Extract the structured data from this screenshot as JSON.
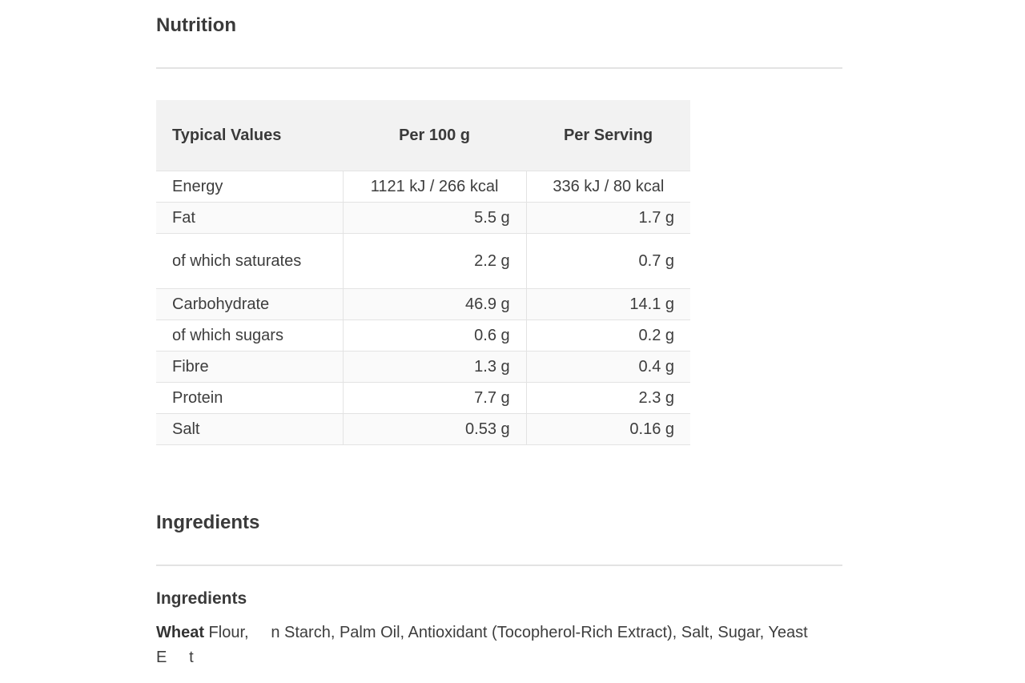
{
  "nutrition": {
    "title": "Nutrition",
    "headers": {
      "label": "Typical Values",
      "per100": "Per 100 g",
      "perServing": "Per Serving"
    },
    "rows": [
      {
        "label": "Energy",
        "per100": "1121 kJ / 266 kcal",
        "perServing": "336 kJ / 80 kcal"
      },
      {
        "label": "Fat",
        "per100": "5.5 g",
        "perServing": "1.7 g"
      },
      {
        "label": "of which saturates",
        "per100": "2.2 g",
        "perServing": "0.7 g"
      },
      {
        "label": "Carbohydrate",
        "per100": "46.9 g",
        "perServing": "14.1 g"
      },
      {
        "label": "of which sugars",
        "per100": "0.6 g",
        "perServing": "0.2 g"
      },
      {
        "label": "Fibre",
        "per100": "1.3 g",
        "perServing": "0.4 g"
      },
      {
        "label": "Protein",
        "per100": "7.7 g",
        "perServing": "2.3 g"
      },
      {
        "label": "Salt",
        "per100": "0.53 g",
        "perServing": "0.16 g"
      }
    ]
  },
  "ingredients": {
    "title": "Ingredients",
    "subtitle": "Ingredients",
    "highlight": "Wheat",
    "text": " Flour,     n Starch, Palm Oil, Antioxidant (Tocopherol-Rich Extract), Salt, Sugar, Yeast E     t"
  }
}
